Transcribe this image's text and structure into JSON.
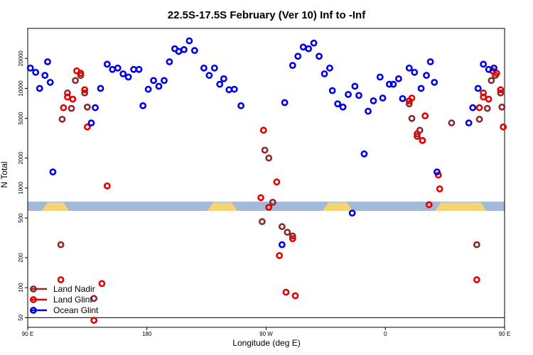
{
  "chart_data": {
    "type": "scatter",
    "title": "22.5S-17.5S February (Ver 10)   Inf to -Inf",
    "xlabel": "Longitude (deg E)",
    "ylabel": "N Total",
    "y_scale": "log",
    "xlim": [
      90,
      450
    ],
    "ylim": [
      40,
      40000
    ],
    "x_ticks": [
      {
        "value": 90,
        "label": "90 E"
      },
      {
        "value": 180,
        "label": "180"
      },
      {
        "value": 270,
        "label": "90 W"
      },
      {
        "value": 360,
        "label": "0"
      },
      {
        "value": 450,
        "label": "90 E"
      },
      {
        "value": 540,
        "label": "180"
      }
    ],
    "y_ticks": [
      {
        "value": 50,
        "label": "50"
      },
      {
        "value": 100,
        "label": "100"
      },
      {
        "value": 200,
        "label": "200"
      },
      {
        "value": 500,
        "label": "500"
      },
      {
        "value": 1000,
        "label": "1000"
      },
      {
        "value": 2000,
        "label": "2000"
      },
      {
        "value": 5000,
        "label": "5000"
      },
      {
        "value": 10000,
        "label": "10000"
      },
      {
        "value": 20000,
        "label": "20000"
      }
    ],
    "reference_line_y": 50,
    "legend_placement": "bottom-left",
    "land_segments": [
      [
        105,
        117
      ],
      [
        230,
        244
      ],
      [
        317,
        331
      ],
      [
        402,
        432
      ]
    ],
    "series": [
      {
        "name": "Land Nadir",
        "color": "#8b2a2a",
        "points": [
          [
            115,
            270
          ],
          [
            116,
            4900
          ],
          [
            120,
            9000
          ],
          [
            123,
            6300
          ],
          [
            126,
            12000
          ],
          [
            130,
            13500
          ],
          [
            133,
            9000
          ],
          [
            135,
            6500
          ],
          [
            140,
            78
          ],
          [
            267,
            460
          ],
          [
            269,
            2400
          ],
          [
            272,
            2000
          ],
          [
            275,
            720
          ],
          [
            282,
            410
          ],
          [
            286,
            360
          ],
          [
            290,
            330
          ],
          [
            378,
            7000
          ],
          [
            380,
            5000
          ],
          [
            384,
            3300
          ],
          [
            386,
            3800
          ],
          [
            388,
            3000
          ],
          [
            410,
            4500
          ],
          [
            429,
            270
          ],
          [
            431,
            4900
          ],
          [
            434,
            9000
          ],
          [
            437,
            6300
          ],
          [
            440,
            12000
          ],
          [
            443,
            13500
          ],
          [
            447,
            9000
          ],
          [
            448,
            6500
          ],
          [
            455,
            78
          ]
        ]
      },
      {
        "name": "Land Glint",
        "color": "#e60000",
        "points": [
          [
            115,
            120
          ],
          [
            117,
            6400
          ],
          [
            120,
            8200
          ],
          [
            124,
            7800
          ],
          [
            127,
            15000
          ],
          [
            130,
            14200
          ],
          [
            133,
            9700
          ],
          [
            135,
            4100
          ],
          [
            140,
            47
          ],
          [
            146,
            110
          ],
          [
            150,
            1050
          ],
          [
            266,
            800
          ],
          [
            268,
            3800
          ],
          [
            272,
            640
          ],
          [
            278,
            1150
          ],
          [
            280,
            210
          ],
          [
            285,
            90
          ],
          [
            290,
            310
          ],
          [
            292,
            83
          ],
          [
            378,
            7500
          ],
          [
            380,
            8000
          ],
          [
            384,
            3500
          ],
          [
            388,
            3000
          ],
          [
            390,
            5300
          ],
          [
            393,
            680
          ],
          [
            400,
            1350
          ],
          [
            401,
            980
          ],
          [
            429,
            120
          ],
          [
            431,
            6400
          ],
          [
            434,
            8200
          ],
          [
            438,
            7800
          ],
          [
            441,
            15000
          ],
          [
            444,
            14200
          ],
          [
            447,
            9700
          ],
          [
            449,
            4100
          ],
          [
            454,
            47
          ],
          [
            460,
            110
          ]
        ]
      },
      {
        "name": "Ocean Glint",
        "color": "#0000e0",
        "points": [
          [
            92,
            16000
          ],
          [
            96,
            14500
          ],
          [
            99,
            10000
          ],
          [
            103,
            13500
          ],
          [
            105,
            18500
          ],
          [
            107,
            11500
          ],
          [
            109,
            1450
          ],
          [
            138,
            4500
          ],
          [
            141,
            6400
          ],
          [
            145,
            10000
          ],
          [
            150,
            17500
          ],
          [
            154,
            15500
          ],
          [
            158,
            16000
          ],
          [
            162,
            14000
          ],
          [
            166,
            13000
          ],
          [
            170,
            15500
          ],
          [
            174,
            15500
          ],
          [
            177,
            6700
          ],
          [
            181,
            9800
          ],
          [
            185,
            12000
          ],
          [
            189,
            10500
          ],
          [
            193,
            12000
          ],
          [
            197,
            18500
          ],
          [
            201,
            25000
          ],
          [
            204,
            23500
          ],
          [
            208,
            24500
          ],
          [
            212,
            30000
          ],
          [
            216,
            24000
          ],
          [
            223,
            16000
          ],
          [
            227,
            13500
          ],
          [
            231,
            16000
          ],
          [
            235,
            11000
          ],
          [
            238,
            12500
          ],
          [
            242,
            9700
          ],
          [
            246,
            9800
          ],
          [
            251,
            6700
          ],
          [
            282,
            270
          ],
          [
            284,
            7200
          ],
          [
            290,
            17000
          ],
          [
            294,
            21000
          ],
          [
            298,
            26000
          ],
          [
            302,
            25000
          ],
          [
            306,
            28500
          ],
          [
            310,
            21000
          ],
          [
            314,
            14000
          ],
          [
            318,
            16000
          ],
          [
            320,
            9500
          ],
          [
            324,
            7000
          ],
          [
            328,
            6500
          ],
          [
            332,
            8700
          ],
          [
            335,
            560
          ],
          [
            337,
            10500
          ],
          [
            340,
            8500
          ],
          [
            344,
            2200
          ],
          [
            347,
            5900
          ],
          [
            351,
            7500
          ],
          [
            356,
            13000
          ],
          [
            358,
            8000
          ],
          [
            363,
            11000
          ],
          [
            366,
            11000
          ],
          [
            370,
            12500
          ],
          [
            373,
            7900
          ],
          [
            378,
            16000
          ],
          [
            382,
            14500
          ],
          [
            387,
            10000
          ],
          [
            391,
            13500
          ],
          [
            394,
            18500
          ],
          [
            397,
            11500
          ],
          [
            399,
            1450
          ],
          [
            423,
            4500
          ],
          [
            426,
            6400
          ],
          [
            430,
            10000
          ],
          [
            434,
            17500
          ],
          [
            438,
            15500
          ],
          [
            442,
            16000
          ]
        ]
      }
    ]
  }
}
